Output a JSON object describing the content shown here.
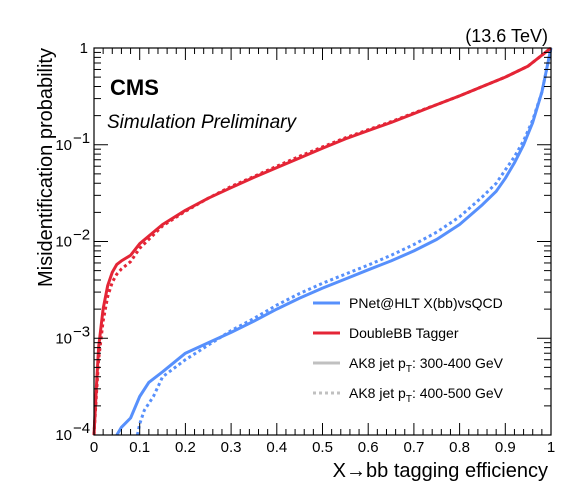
{
  "chart_data": {
    "type": "line",
    "title": "",
    "xlabel": "X→bb tagging efficiency",
    "ylabel": "Misidentification probability",
    "xlim": [
      0,
      1
    ],
    "ylim": [
      0.0001,
      1
    ],
    "yscale": "log",
    "x_ticks": [
      "0",
      "0.1",
      "0.2",
      "0.3",
      "0.4",
      "0.5",
      "0.6",
      "0.7",
      "0.8",
      "0.9",
      "1"
    ],
    "y_ticks": [
      {
        "value": 0.0001,
        "base": "10",
        "exp": "−4"
      },
      {
        "value": 0.001,
        "base": "10",
        "exp": "−3"
      },
      {
        "value": 0.01,
        "base": "10",
        "exp": "−2"
      },
      {
        "value": 0.1,
        "base": "10",
        "exp": "−1"
      },
      {
        "value": 1,
        "base": "1",
        "exp": ""
      }
    ],
    "experiment": "CMS",
    "sublabel": "Simulation Preliminary",
    "energy": "(13.6 TeV)",
    "legend_position": "bottom-right",
    "legend": [
      {
        "label": "PNet@HLT X(bb)vsQCD",
        "color": "#5790fc",
        "style": "solid"
      },
      {
        "label": "DoubleBB Tagger",
        "color": "#e42536",
        "style": "solid"
      },
      {
        "label_main": "AK8 jet p",
        "label_sub": "T",
        "label_rest": ": 300-400 GeV",
        "color": "#c0c0c0",
        "style": "solid"
      },
      {
        "label_main": "AK8 jet p",
        "label_sub": "T",
        "label_rest": ": 400-500 GeV",
        "color": "#c0c0c0",
        "style": "dotted"
      }
    ],
    "series": [
      {
        "name": "PNet@HLT X(bb)vsQCD — AK8 jet pT: 300-400 GeV",
        "color": "#5790fc",
        "dash": "solid",
        "x": [
          0.05,
          0.06,
          0.08,
          0.1,
          0.12,
          0.15,
          0.2,
          0.25,
          0.3,
          0.35,
          0.4,
          0.45,
          0.5,
          0.55,
          0.6,
          0.65,
          0.7,
          0.75,
          0.8,
          0.85,
          0.88,
          0.9,
          0.92,
          0.94,
          0.96,
          0.98,
          1.0
        ],
        "y": [
          0.0001,
          0.00012,
          0.00015,
          0.00025,
          0.00035,
          0.00045,
          0.0007,
          0.0009,
          0.00115,
          0.0015,
          0.002,
          0.0026,
          0.0033,
          0.0041,
          0.0051,
          0.0063,
          0.008,
          0.0105,
          0.015,
          0.024,
          0.033,
          0.045,
          0.065,
          0.1,
          0.17,
          0.35,
          1.0
        ]
      },
      {
        "name": "PNet@HLT X(bb)vsQCD — AK8 jet pT: 400-500 GeV",
        "color": "#5790fc",
        "dash": "dotted",
        "x": [
          0.095,
          0.1,
          0.11,
          0.13,
          0.15,
          0.2,
          0.25,
          0.3,
          0.35,
          0.4,
          0.45,
          0.5,
          0.55,
          0.6,
          0.65,
          0.7,
          0.75,
          0.8,
          0.85,
          0.88,
          0.9,
          0.92,
          0.94,
          0.96,
          0.98,
          1.0
        ],
        "y": [
          0.0001,
          0.00013,
          0.00018,
          0.00025,
          0.0004,
          0.0006,
          0.00085,
          0.0012,
          0.0016,
          0.0022,
          0.0029,
          0.0037,
          0.0046,
          0.0057,
          0.0072,
          0.0093,
          0.0125,
          0.018,
          0.029,
          0.04,
          0.055,
          0.075,
          0.11,
          0.18,
          0.35,
          1.0
        ]
      },
      {
        "name": "DoubleBB Tagger — AK8 jet pT: 300-400 GeV",
        "color": "#e42536",
        "dash": "solid",
        "x": [
          0.0,
          0.005,
          0.01,
          0.02,
          0.03,
          0.04,
          0.05,
          0.06,
          0.08,
          0.1,
          0.15,
          0.2,
          0.25,
          0.3,
          0.35,
          0.4,
          0.45,
          0.5,
          0.55,
          0.6,
          0.65,
          0.7,
          0.75,
          0.8,
          0.85,
          0.9,
          0.95,
          1.0
        ],
        "y": [
          0.0001,
          0.0003,
          0.0008,
          0.002,
          0.0035,
          0.0048,
          0.0058,
          0.0063,
          0.0072,
          0.0095,
          0.015,
          0.021,
          0.028,
          0.036,
          0.046,
          0.058,
          0.073,
          0.092,
          0.115,
          0.14,
          0.17,
          0.21,
          0.26,
          0.32,
          0.4,
          0.5,
          0.65,
          1.0
        ]
      },
      {
        "name": "DoubleBB Tagger — AK8 jet pT: 400-500 GeV",
        "color": "#e42536",
        "dash": "dotted",
        "x": [
          0.0,
          0.005,
          0.01,
          0.02,
          0.03,
          0.04,
          0.05,
          0.06,
          0.08,
          0.1,
          0.15,
          0.2,
          0.25,
          0.3,
          0.35,
          0.4,
          0.45,
          0.5,
          0.55,
          0.6,
          0.65,
          0.7,
          0.75,
          0.8,
          0.85,
          0.9,
          0.95,
          1.0
        ],
        "y": [
          0.0001,
          0.00025,
          0.0006,
          0.0015,
          0.0027,
          0.0038,
          0.0046,
          0.0052,
          0.0062,
          0.0085,
          0.0145,
          0.0205,
          0.028,
          0.037,
          0.047,
          0.06,
          0.076,
          0.095,
          0.118,
          0.143,
          0.173,
          0.213,
          0.26,
          0.32,
          0.4,
          0.5,
          0.65,
          1.0
        ]
      }
    ]
  }
}
